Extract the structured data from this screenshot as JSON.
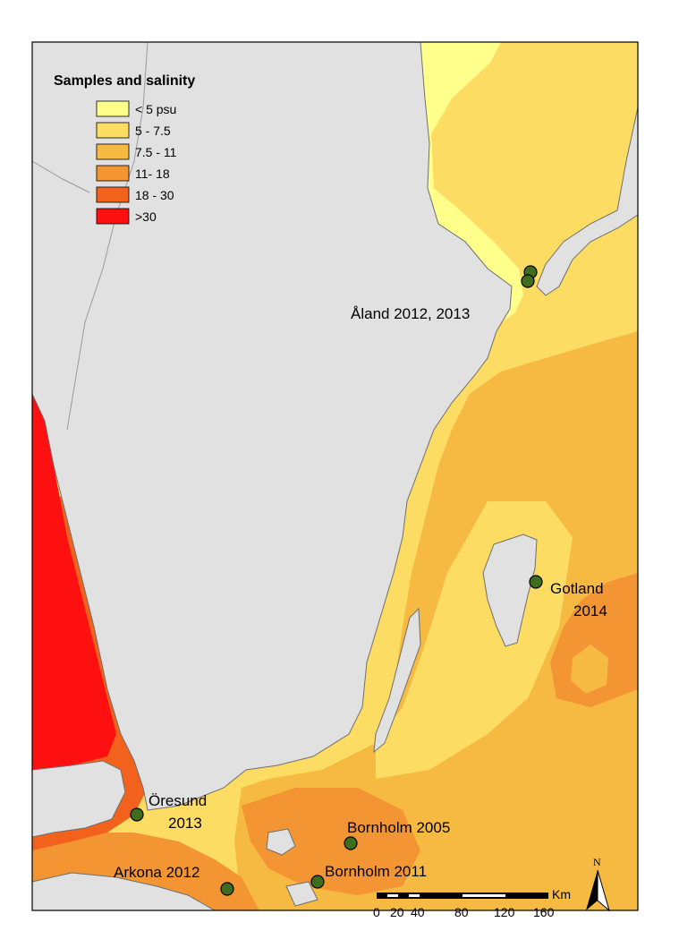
{
  "legend": {
    "title": "Samples and salinity",
    "items": [
      {
        "label": "< 5 psu",
        "color": "#ffff8c"
      },
      {
        "label": "5 - 7.5",
        "color": "#fcdc62"
      },
      {
        "label": "7.5 - 11",
        "color": "#f6b942"
      },
      {
        "label": "11- 18",
        "color": "#f39533"
      },
      {
        "label": "18 - 30",
        "color": "#f3621d"
      },
      {
        "label": ">30",
        "color": "#ff1010"
      }
    ]
  },
  "colors": {
    "land": "#e1e1e1",
    "coast": "#6f6f6f",
    "border": "#9a9a9a",
    "site_marker": "#3f6d1d"
  },
  "sites": [
    {
      "name": "Åland 2012, 2013",
      "lines": [
        "Åland 2012, 2013"
      ]
    },
    {
      "name": "Gotland 2014",
      "lines": [
        "Gotland",
        "2014"
      ]
    },
    {
      "name": "Öresund 2013",
      "lines": [
        "Öresund",
        "2013"
      ]
    },
    {
      "name": "Bornholm 2005",
      "lines": [
        "Bornholm 2005"
      ]
    },
    {
      "name": "Arkona 2012",
      "lines": [
        "Arkona 2012"
      ]
    },
    {
      "name": "Bornholm 2011",
      "lines": [
        "Bornholm 2011"
      ]
    }
  ],
  "scale_bar": {
    "unit": "Km",
    "ticks": [
      "0",
      "20",
      "40",
      "80",
      "120",
      "160"
    ]
  },
  "north_arrow": {
    "label": "N"
  }
}
